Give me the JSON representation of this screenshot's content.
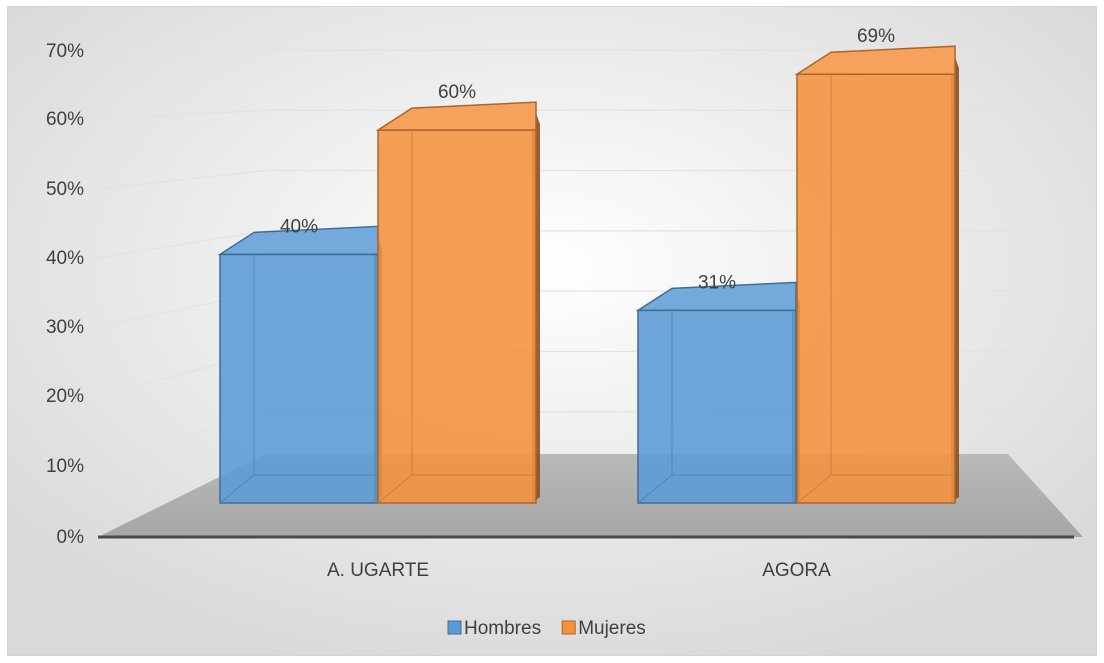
{
  "chart_data": {
    "type": "bar",
    "title": "",
    "xlabel": "",
    "ylabel": "",
    "categories": [
      "A. UGARTE",
      "AGORA"
    ],
    "series": [
      {
        "name": "Hombres",
        "values": [
          40,
          31
        ],
        "labels": [
          "40%",
          "31%"
        ],
        "color": "#5b9bd5"
      },
      {
        "name": "Mujeres",
        "values": [
          60,
          69
        ],
        "labels": [
          "60%",
          "69%"
        ],
        "color": "#f4913f"
      }
    ],
    "ylim": [
      0,
      70
    ],
    "yticks": [
      "0%",
      "10%",
      "20%",
      "30%",
      "40%",
      "50%",
      "60%",
      "70%"
    ],
    "grid": true,
    "legend": "bottom",
    "style": "3d-clustered-column"
  }
}
